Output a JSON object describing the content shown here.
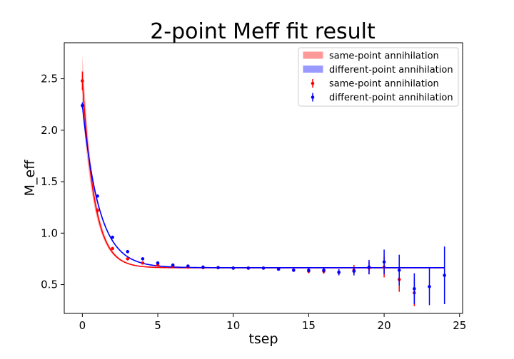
{
  "chart_data": {
    "type": "scatter",
    "title": "2-point Meff fit result",
    "xlabel": "tsep",
    "ylabel": "M_eff",
    "xlim": [
      -1.2,
      25.2
    ],
    "ylim": [
      0.22,
      2.85
    ],
    "xticks": [
      0,
      5,
      10,
      15,
      20,
      25
    ],
    "yticks": [
      0.5,
      1.0,
      1.5,
      2.0,
      2.5
    ],
    "xtick_labels": [
      "0",
      "5",
      "10",
      "15",
      "20",
      "25"
    ],
    "ytick_labels": [
      "0.5",
      "1.0",
      "1.5",
      "2.0",
      "2.5"
    ],
    "grid": false,
    "legend_position": "top-right",
    "legend": [
      {
        "label": "same-point annihilation",
        "kind": "band",
        "color": "#ff9999"
      },
      {
        "label": "different-point annihilation",
        "kind": "band",
        "color": "#9999ff"
      },
      {
        "label": "same-point annihilation",
        "kind": "errorbar",
        "color": "#ff0000"
      },
      {
        "label": "different-point annihilation",
        "kind": "errorbar",
        "color": "#0000ff"
      }
    ],
    "series": [
      {
        "color": "#ff0000",
        "band_color": "#ff9999",
        "points": [
          {
            "x": 0,
            "y": 2.48,
            "err": 0.09
          },
          {
            "x": 1,
            "y": 1.22,
            "err": 0.02
          },
          {
            "x": 2,
            "y": 0.85,
            "err": 0.01
          },
          {
            "x": 3,
            "y": 0.75,
            "err": 0.01
          },
          {
            "x": 4,
            "y": 0.71,
            "err": 0.01
          },
          {
            "x": 5,
            "y": 0.69,
            "err": 0.01
          },
          {
            "x": 6,
            "y": 0.68,
            "err": 0.01
          },
          {
            "x": 7,
            "y": 0.67,
            "err": 0.01
          },
          {
            "x": 8,
            "y": 0.665,
            "err": 0.01
          },
          {
            "x": 9,
            "y": 0.665,
            "err": 0.01
          },
          {
            "x": 10,
            "y": 0.66,
            "err": 0.01
          },
          {
            "x": 11,
            "y": 0.66,
            "err": 0.01
          },
          {
            "x": 12,
            "y": 0.66,
            "err": 0.01
          },
          {
            "x": 13,
            "y": 0.65,
            "err": 0.01
          },
          {
            "x": 14,
            "y": 0.64,
            "err": 0.015
          },
          {
            "x": 15,
            "y": 0.63,
            "err": 0.02
          },
          {
            "x": 16,
            "y": 0.63,
            "err": 0.025
          },
          {
            "x": 17,
            "y": 0.62,
            "err": 0.03
          },
          {
            "x": 18,
            "y": 0.64,
            "err": 0.05
          },
          {
            "x": 19,
            "y": 0.66,
            "err": 0.06
          },
          {
            "x": 20,
            "y": 0.67,
            "err": 0.1
          },
          {
            "x": 21,
            "y": 0.55,
            "err": 0.12
          },
          {
            "x": 22,
            "y": 0.42,
            "err": 0.13
          }
        ],
        "fit": {
          "A": 1.82,
          "k": 1.25,
          "c": 0.663,
          "t_min": 0,
          "t_max": 24,
          "band_a": 0.25,
          "band_k": 1.5,
          "band_c": 0.004
        }
      },
      {
        "color": "#0000ff",
        "band_color": "#9999ff",
        "points": [
          {
            "x": 0,
            "y": 2.24,
            "err": 0.03
          },
          {
            "x": 1,
            "y": 1.36,
            "err": 0.015
          },
          {
            "x": 2,
            "y": 0.96,
            "err": 0.01
          },
          {
            "x": 3,
            "y": 0.82,
            "err": 0.01
          },
          {
            "x": 4,
            "y": 0.75,
            "err": 0.01
          },
          {
            "x": 5,
            "y": 0.71,
            "err": 0.01
          },
          {
            "x": 6,
            "y": 0.69,
            "err": 0.01
          },
          {
            "x": 7,
            "y": 0.68,
            "err": 0.01
          },
          {
            "x": 8,
            "y": 0.67,
            "err": 0.01
          },
          {
            "x": 9,
            "y": 0.665,
            "err": 0.01
          },
          {
            "x": 10,
            "y": 0.66,
            "err": 0.01
          },
          {
            "x": 11,
            "y": 0.66,
            "err": 0.01
          },
          {
            "x": 12,
            "y": 0.66,
            "err": 0.01
          },
          {
            "x": 13,
            "y": 0.65,
            "err": 0.01
          },
          {
            "x": 14,
            "y": 0.64,
            "err": 0.015
          },
          {
            "x": 15,
            "y": 0.64,
            "err": 0.02
          },
          {
            "x": 16,
            "y": 0.64,
            "err": 0.025
          },
          {
            "x": 17,
            "y": 0.62,
            "err": 0.03
          },
          {
            "x": 18,
            "y": 0.63,
            "err": 0.04
          },
          {
            "x": 19,
            "y": 0.67,
            "err": 0.07
          },
          {
            "x": 20,
            "y": 0.72,
            "err": 0.12
          },
          {
            "x": 21,
            "y": 0.64,
            "err": 0.15
          },
          {
            "x": 22,
            "y": 0.46,
            "err": 0.15
          },
          {
            "x": 23,
            "y": 0.48,
            "err": 0.18
          },
          {
            "x": 24,
            "y": 0.59,
            "err": 0.28
          }
        ],
        "fit": {
          "A": 1.58,
          "k": 0.9,
          "c": 0.664,
          "t_min": 0,
          "t_max": 24,
          "band_a": 0.06,
          "band_k": 1.1,
          "band_c": 0.004
        }
      }
    ]
  }
}
